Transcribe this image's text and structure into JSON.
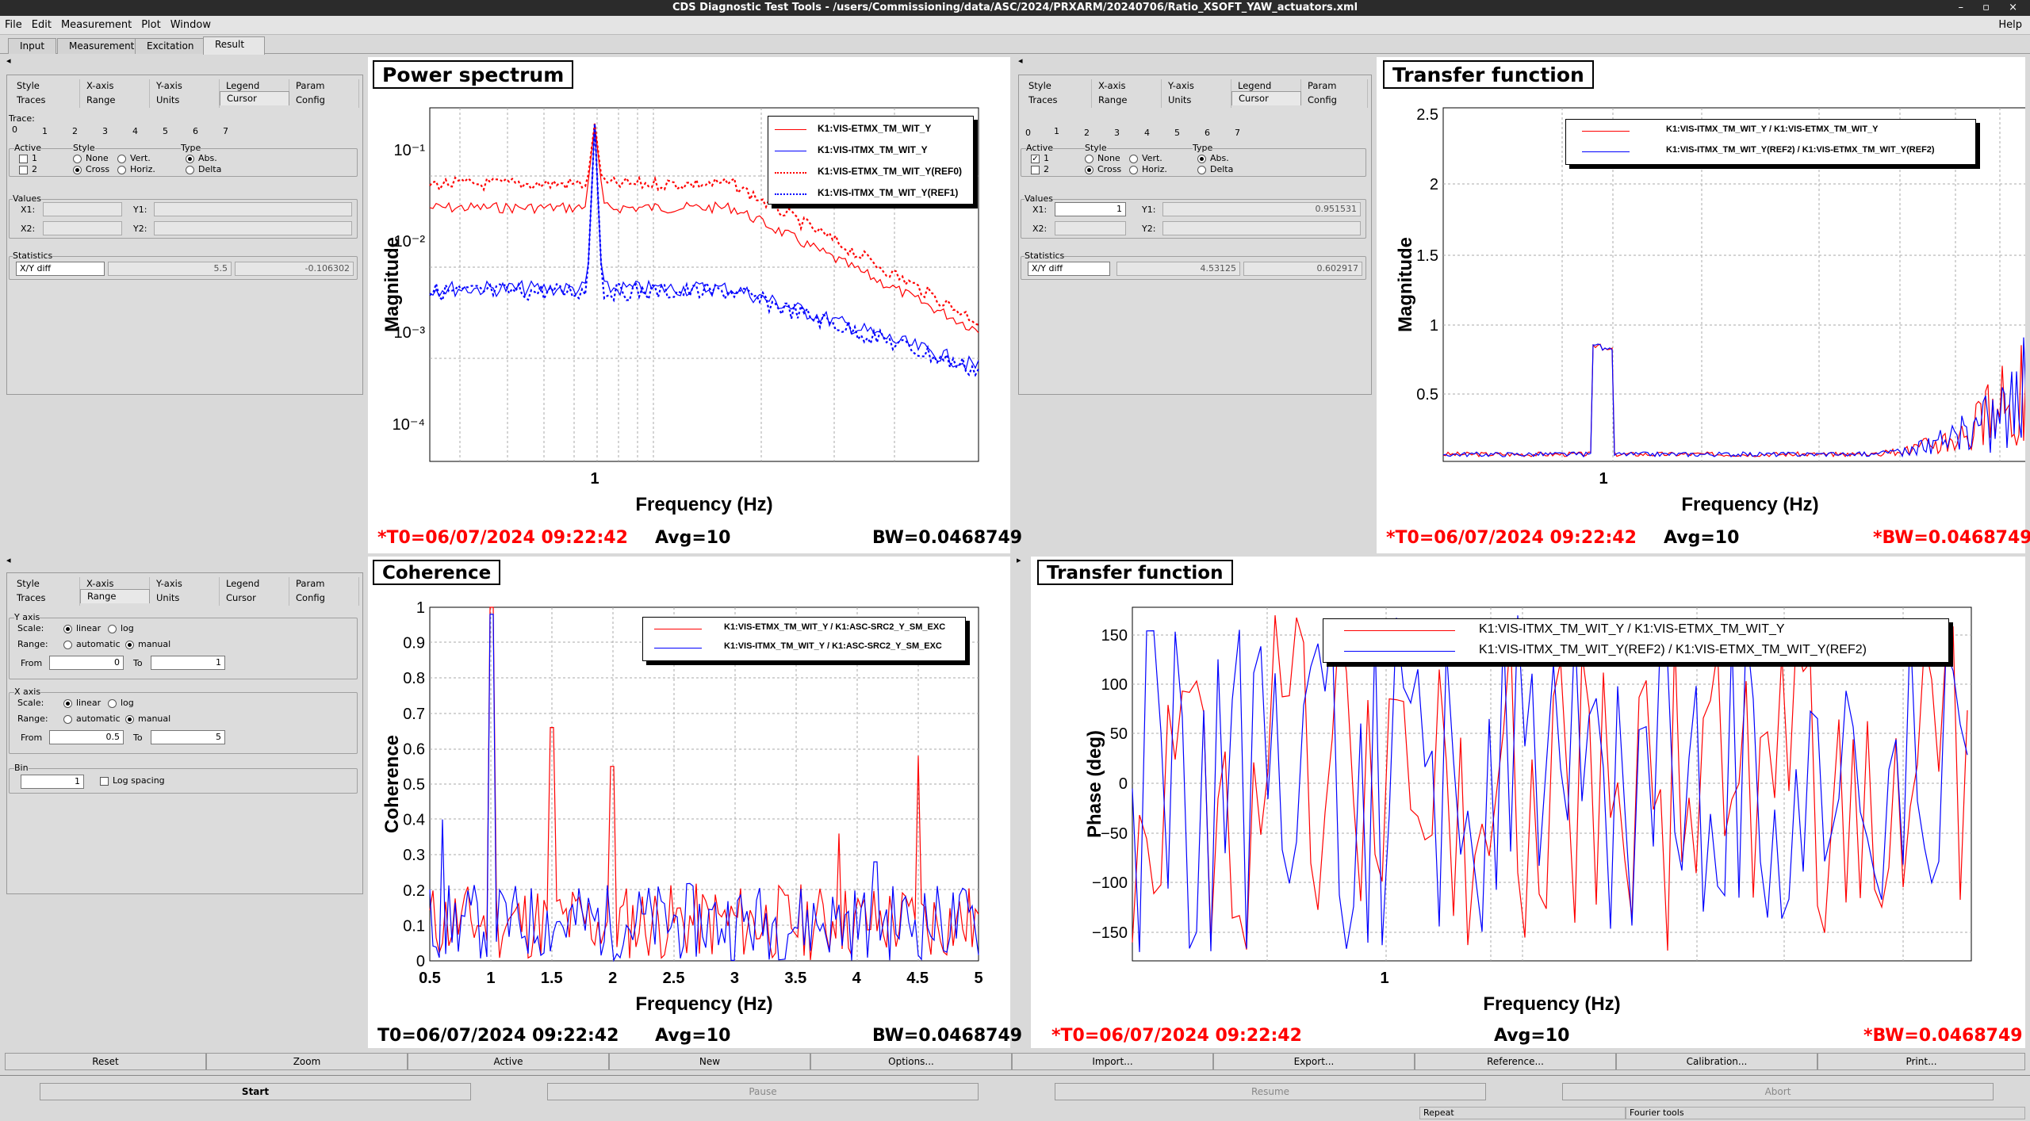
{
  "window": {
    "title": "CDS Diagnostic Test Tools - /users/Commissioning/data/ASC/2024/PRXARM/20240706/Ratio_XSOFT_YAW_actuators.xml",
    "controls": "– ▫ ×"
  },
  "menu": {
    "items": [
      "File",
      "Edit",
      "Measurement",
      "Plot",
      "Window"
    ],
    "help": "Help"
  },
  "main_tabs": [
    "Input",
    "Measurement",
    "Excitation",
    "Result"
  ],
  "panel_tl": {
    "collapse": "◂",
    "subtabs_row1": [
      "Style",
      "X-axis",
      "Y-axis",
      "Legend",
      "Param"
    ],
    "subtabs_row2": [
      "Traces",
      "Range",
      "Units",
      "Cursor",
      "Config"
    ],
    "trace_label": "Trace:",
    "trace_numbers": [
      "0",
      "1",
      "2",
      "3",
      "4",
      "5",
      "6",
      "7"
    ],
    "active_label": "Active",
    "active_items": [
      "1",
      "2"
    ],
    "style_label": "Style",
    "style_items": [
      "None",
      "Vert.",
      "Cross",
      "Horiz."
    ],
    "type_label": "Type",
    "type_items": [
      "Abs.",
      "Delta"
    ],
    "values_label": "Values",
    "x1": "X1:",
    "y1": "Y1:",
    "x2": "X2:",
    "y2": "Y2:",
    "x1_val": "",
    "y1_val": "",
    "stats_label": "Statistics",
    "stats_select": "X/Y diff",
    "stat1": "5.5",
    "stat2": "-0.106302"
  },
  "panel_tr": {
    "collapse": "◂",
    "subtabs_row1": [
      "Style",
      "X-axis",
      "Y-axis",
      "Legend",
      "Param"
    ],
    "subtabs_row2": [
      "Traces",
      "Range",
      "Units",
      "Cursor",
      "Config"
    ],
    "trace_numbers": [
      "0",
      "1",
      "2",
      "3",
      "4",
      "5",
      "6",
      "7"
    ],
    "active_label": "Active",
    "active_items": [
      "1",
      "2"
    ],
    "style_label": "Style",
    "style_items": [
      "None",
      "Vert.",
      "Cross",
      "Horiz."
    ],
    "type_label": "Type",
    "type_items": [
      "Abs.",
      "Delta"
    ],
    "values_label": "Values",
    "x1": "X1:",
    "y1": "Y1:",
    "x2": "X2:",
    "y2": "Y2:",
    "x1_val": "1",
    "y1_val": "0.951531",
    "stats_label": "Statistics",
    "stats_select": "X/Y diff",
    "stat1": "4.53125",
    "stat2": "0.602917"
  },
  "panel_bl": {
    "collapse": "◂",
    "subtabs_row1": [
      "Style",
      "X-axis",
      "Y-axis",
      "Legend",
      "Param"
    ],
    "subtabs_row2": [
      "Traces",
      "Range",
      "Units",
      "Cursor",
      "Config"
    ],
    "yaxis_label": "Y axis",
    "scale_label": "Scale:",
    "linear": "linear",
    "log": "log",
    "range_label": "Range:",
    "automatic": "automatic",
    "manual": "manual",
    "from_label": "From",
    "to_label": "To",
    "y_from": "0",
    "y_to": "1",
    "xaxis_label": "X axis",
    "x_from": "0.5",
    "x_to": "5",
    "bin_label": "Bin",
    "bin_val": "1",
    "log_spacing": "Log spacing"
  },
  "plot_ps": {
    "title": "Power spectrum",
    "xlabel": "Frequency (Hz)",
    "ylabel": "Magnitude",
    "t0": "*T0=06/07/2024 09:22:42",
    "avg": "Avg=10",
    "bw": "BW=0.0468749",
    "ytick_labels": [
      "10⁻¹",
      "10⁻²",
      "10⁻³",
      "10⁻⁴"
    ],
    "xtick_labels": [
      "1"
    ]
  },
  "plot_tf1": {
    "title": "Transfer function",
    "xlabel": "Frequency (Hz)",
    "ylabel": "Magnitude",
    "t0": "*T0=06/07/2024 09:22:42",
    "avg": "Avg=10",
    "bw": "*BW=0.0468749",
    "ytick_labels": [
      "2.5",
      "2",
      "1.5",
      "1",
      "0.5"
    ],
    "xtick_labels": [
      "1"
    ]
  },
  "plot_coh": {
    "title": "Coherence",
    "xlabel": "Frequency (Hz)",
    "ylabel": "Coherence",
    "t0": "T0=06/07/2024 09:22:42",
    "avg": "Avg=10",
    "bw": "BW=0.0468749",
    "ytick_labels": [
      "1",
      "0.9",
      "0.8",
      "0.7",
      "0.6",
      "0.5",
      "0.4",
      "0.3",
      "0.2",
      "0.1",
      "0"
    ],
    "xtick_labels": [
      "0.5",
      "1",
      "1.5",
      "2",
      "2.5",
      "3",
      "3.5",
      "4",
      "4.5",
      "5"
    ]
  },
  "plot_tf2": {
    "title": "Transfer function",
    "xlabel": "Frequency (Hz)",
    "ylabel": "Phase (deg)",
    "t0": "*T0=06/07/2024 09:22:42",
    "avg": "Avg=10",
    "bw": "*BW=0.0468749",
    "ytick_labels": [
      "150",
      "100",
      "50",
      "0",
      "−50",
      "−100",
      "−150"
    ],
    "xtick_labels": [
      "1"
    ]
  },
  "legends": {
    "ps": [
      "K1:VIS-ETMX_TM_WIT_Y",
      "K1:VIS-ITMX_TM_WIT_Y",
      "K1:VIS-ETMX_TM_WIT_Y(REF0)",
      "K1:VIS-ITMX_TM_WIT_Y(REF1)"
    ],
    "tf1": [
      "K1:VIS-ITMX_TM_WIT_Y / K1:VIS-ETMX_TM_WIT_Y",
      "K1:VIS-ITMX_TM_WIT_Y(REF2) / K1:VIS-ETMX_TM_WIT_Y(REF2)"
    ],
    "coh": [
      "K1:VIS-ETMX_TM_WIT_Y / K1:ASC-SRC2_Y_SM_EXC",
      "K1:VIS-ITMX_TM_WIT_Y / K1:ASC-SRC2_Y_SM_EXC"
    ],
    "tf2": [
      "K1:VIS-ITMX_TM_WIT_Y / K1:VIS-ETMX_TM_WIT_Y",
      "K1:VIS-ITMX_TM_WIT_Y(REF2) / K1:VIS-ETMX_TM_WIT_Y(REF2)"
    ]
  },
  "buttons": [
    "Reset",
    "Zoom",
    "Active",
    "New",
    "Options...",
    "Import...",
    "Export...",
    "Reference...",
    "Calibration...",
    "Print..."
  ],
  "control": [
    "Start",
    "Pause",
    "Resume",
    "Abort"
  ],
  "status": {
    "repeat": "Repeat",
    "fourier": "Fourier tools"
  },
  "colors": {
    "series_a": "#ff0000",
    "series_b": "#0000ff",
    "title_red": "#ff0000"
  }
}
